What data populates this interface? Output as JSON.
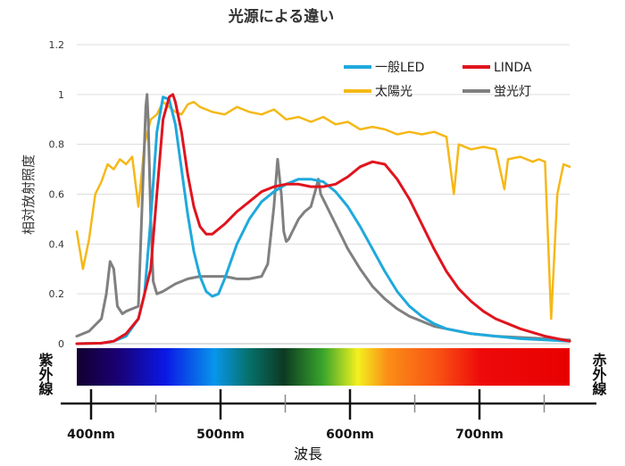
{
  "chart_data": {
    "type": "line",
    "title": "光源による違い",
    "ylabel": "相対放射照度",
    "xlabel": "波長",
    "xlim": [
      380,
      780
    ],
    "ylim": [
      0,
      1.2
    ],
    "yticks": [
      0,
      0.2,
      0.4,
      0.6,
      0.8,
      1,
      1.2
    ],
    "ytick_labels": [
      "0",
      "0.2",
      "0.4",
      "0.6",
      "0.8",
      "1",
      "1.2"
    ],
    "grid": true,
    "legend_position": "top-right",
    "series": [
      {
        "name": "一般LED",
        "color": "#1fa9dd",
        "x": [
          380,
          400,
          410,
          420,
          430,
          435,
          440,
          445,
          450,
          455,
          460,
          465,
          470,
          475,
          480,
          485,
          490,
          495,
          500,
          505,
          510,
          520,
          530,
          540,
          550,
          560,
          570,
          580,
          590,
          600,
          610,
          620,
          630,
          640,
          650,
          660,
          670,
          680,
          700,
          720,
          740,
          760,
          780
        ],
        "y": [
          0,
          0.002,
          0.01,
          0.03,
          0.1,
          0.2,
          0.5,
          0.85,
          0.99,
          0.98,
          0.88,
          0.7,
          0.52,
          0.37,
          0.27,
          0.21,
          0.19,
          0.2,
          0.26,
          0.33,
          0.4,
          0.5,
          0.57,
          0.61,
          0.64,
          0.66,
          0.66,
          0.65,
          0.61,
          0.55,
          0.47,
          0.38,
          0.29,
          0.21,
          0.15,
          0.11,
          0.08,
          0.06,
          0.04,
          0.03,
          0.02,
          0.015,
          0.01
        ]
      },
      {
        "name": "LINDA",
        "color": "#e0141e",
        "x": [
          380,
          400,
          410,
          420,
          430,
          440,
          445,
          450,
          455,
          458,
          460,
          465,
          470,
          475,
          480,
          485,
          490,
          500,
          510,
          520,
          530,
          540,
          550,
          560,
          570,
          580,
          590,
          600,
          610,
          620,
          630,
          640,
          650,
          660,
          670,
          680,
          690,
          700,
          710,
          720,
          730,
          740,
          760,
          780
        ],
        "y": [
          0,
          0.002,
          0.01,
          0.04,
          0.1,
          0.3,
          0.6,
          0.9,
          0.99,
          1.0,
          0.97,
          0.85,
          0.68,
          0.55,
          0.47,
          0.44,
          0.44,
          0.48,
          0.53,
          0.57,
          0.61,
          0.63,
          0.64,
          0.64,
          0.63,
          0.63,
          0.64,
          0.67,
          0.71,
          0.73,
          0.72,
          0.66,
          0.58,
          0.48,
          0.38,
          0.29,
          0.22,
          0.17,
          0.13,
          0.1,
          0.08,
          0.06,
          0.03,
          0.01
        ]
      },
      {
        "name": "太陽光",
        "color": "#f5b817",
        "x": [
          380,
          385,
          390,
          395,
          400,
          405,
          410,
          415,
          420,
          425,
          430,
          435,
          440,
          445,
          450,
          455,
          460,
          465,
          470,
          475,
          480,
          490,
          500,
          510,
          520,
          530,
          540,
          550,
          560,
          570,
          580,
          590,
          600,
          610,
          620,
          630,
          640,
          650,
          660,
          670,
          680,
          686,
          690,
          700,
          710,
          720,
          727,
          730,
          740,
          750,
          755,
          760,
          765,
          770,
          775,
          780
        ],
        "y": [
          0.45,
          0.3,
          0.42,
          0.6,
          0.65,
          0.72,
          0.7,
          0.74,
          0.72,
          0.75,
          0.55,
          0.8,
          0.9,
          0.92,
          0.97,
          0.95,
          0.93,
          0.92,
          0.96,
          0.97,
          0.95,
          0.93,
          0.92,
          0.95,
          0.93,
          0.92,
          0.94,
          0.9,
          0.91,
          0.89,
          0.91,
          0.88,
          0.89,
          0.86,
          0.87,
          0.86,
          0.84,
          0.85,
          0.84,
          0.85,
          0.83,
          0.6,
          0.8,
          0.78,
          0.79,
          0.78,
          0.62,
          0.74,
          0.75,
          0.73,
          0.74,
          0.73,
          0.1,
          0.6,
          0.72,
          0.71
        ]
      },
      {
        "name": "蛍光灯",
        "color": "#808080",
        "x": [
          380,
          390,
          400,
          404,
          407,
          410,
          413,
          417,
          420,
          425,
          430,
          433,
          436,
          437,
          438,
          440,
          442,
          445,
          450,
          460,
          470,
          480,
          490,
          500,
          510,
          520,
          530,
          535,
          540,
          543,
          546,
          548,
          550,
          552,
          555,
          560,
          565,
          570,
          574,
          576,
          578,
          580,
          590,
          600,
          610,
          620,
          630,
          640,
          650,
          660,
          670,
          680,
          690,
          700,
          720,
          740,
          760,
          780
        ],
        "y": [
          0.03,
          0.05,
          0.1,
          0.2,
          0.33,
          0.3,
          0.15,
          0.12,
          0.13,
          0.14,
          0.15,
          0.55,
          0.95,
          1.0,
          0.9,
          0.5,
          0.25,
          0.2,
          0.21,
          0.24,
          0.26,
          0.27,
          0.27,
          0.27,
          0.26,
          0.26,
          0.27,
          0.32,
          0.55,
          0.74,
          0.6,
          0.45,
          0.41,
          0.42,
          0.45,
          0.5,
          0.53,
          0.55,
          0.62,
          0.66,
          0.6,
          0.58,
          0.48,
          0.38,
          0.3,
          0.23,
          0.18,
          0.14,
          0.11,
          0.09,
          0.07,
          0.06,
          0.05,
          0.04,
          0.03,
          0.025,
          0.02,
          0.015
        ]
      }
    ],
    "spectrum_bar": {
      "left_label": "紫外線",
      "right_label": "赤外線"
    },
    "wavelength_axis": {
      "major_ticks": [
        400,
        500,
        600,
        700
      ],
      "major_labels": [
        "400nm",
        "500nm",
        "600nm",
        "700nm"
      ],
      "minor_ticks": [
        450,
        550,
        650,
        750
      ]
    }
  }
}
